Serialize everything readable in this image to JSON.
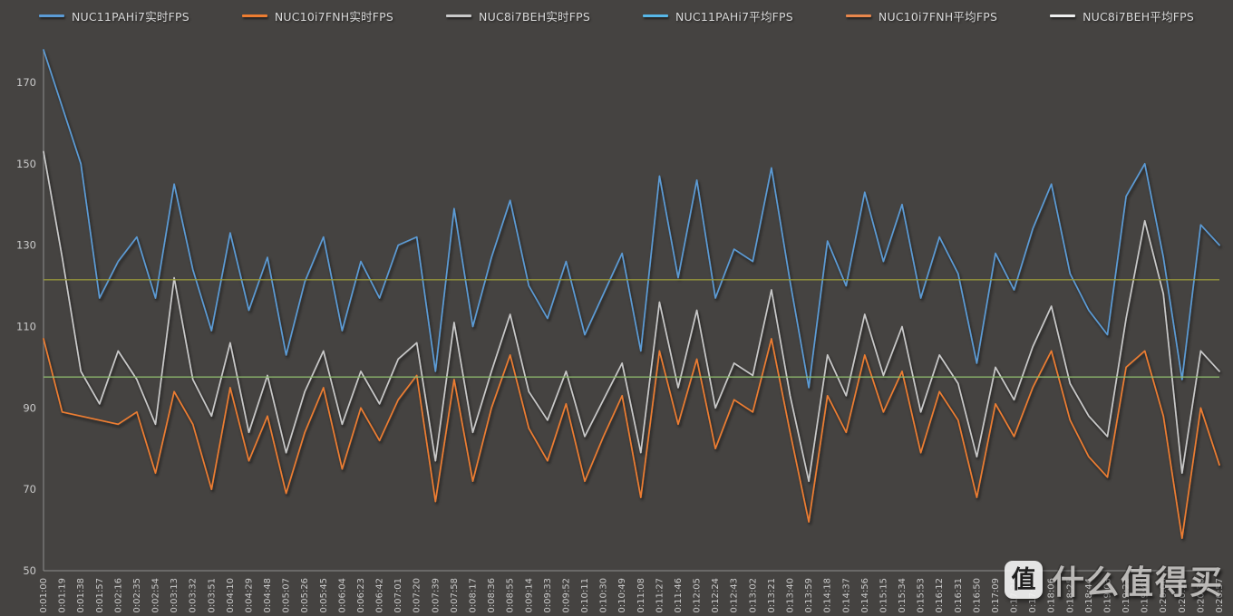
{
  "colors": {
    "background": "#4a4846",
    "axis": "#8f8f8f",
    "tick_text": "#c9c9c9",
    "legend_text": "#d9d9d9"
  },
  "watermark": {
    "logo_char": "值",
    "text": "什么值得买"
  },
  "chart_data": {
    "type": "line",
    "title": "",
    "xlabel": "",
    "ylabel": "",
    "grid": false,
    "legend_position": "top",
    "ylim": [
      50,
      178
    ],
    "yticks": [
      50,
      70,
      90,
      110,
      130,
      150,
      170
    ],
    "x": [
      "0:01:00",
      "0:01:19",
      "0:01:38",
      "0:01:57",
      "0:02:16",
      "0:02:35",
      "0:02:54",
      "0:03:13",
      "0:03:32",
      "0:03:51",
      "0:04:10",
      "0:04:29",
      "0:04:48",
      "0:05:07",
      "0:05:26",
      "0:05:45",
      "0:06:04",
      "0:06:23",
      "0:06:42",
      "0:07:01",
      "0:07:20",
      "0:07:39",
      "0:07:58",
      "0:08:17",
      "0:08:36",
      "0:08:55",
      "0:09:14",
      "0:09:33",
      "0:09:52",
      "0:10:11",
      "0:10:30",
      "0:10:49",
      "0:11:08",
      "0:11:27",
      "0:11:46",
      "0:12:05",
      "0:12:24",
      "0:12:43",
      "0:13:02",
      "0:13:21",
      "0:13:40",
      "0:13:59",
      "0:14:18",
      "0:14:37",
      "0:14:56",
      "0:15:15",
      "0:15:34",
      "0:15:53",
      "0:16:12",
      "0:16:31",
      "0:16:50",
      "0:17:09",
      "0:17:28",
      "0:17:47",
      "0:18:06",
      "0:18:25",
      "0:18:44",
      "0:19:03",
      "0:19:22",
      "0:19:41",
      "0:20:00",
      "0:20:19",
      "0:20:38",
      "0:20:57"
    ],
    "series": [
      {
        "name": "NUC11PAHi7实时FPS",
        "color": "#5B9BD5",
        "values": [
          178,
          164,
          150,
          117,
          126,
          132,
          117,
          145,
          124,
          109,
          133,
          114,
          127,
          103,
          121,
          132,
          109,
          126,
          117,
          130,
          132,
          99,
          139,
          110,
          127,
          141,
          120,
          112,
          126,
          108,
          118,
          128,
          104,
          147,
          122,
          146,
          117,
          129,
          126,
          149,
          121,
          95,
          131,
          120,
          143,
          126,
          140,
          117,
          132,
          123,
          101,
          128,
          119,
          134,
          145,
          123,
          114,
          108,
          142,
          150,
          127,
          97,
          135,
          130
        ]
      },
      {
        "name": "NUC10i7FNH实时FPS",
        "color": "#ED7D31",
        "values": [
          107,
          89,
          88,
          87,
          86,
          89,
          74,
          94,
          86,
          70,
          95,
          77,
          88,
          69,
          84,
          95,
          75,
          90,
          82,
          92,
          98,
          67,
          97,
          72,
          90,
          103,
          85,
          77,
          91,
          72,
          83,
          93,
          68,
          104,
          86,
          102,
          80,
          92,
          89,
          107,
          84,
          62,
          93,
          84,
          103,
          89,
          99,
          79,
          94,
          87,
          68,
          91,
          83,
          95,
          104,
          87,
          78,
          73,
          100,
          104,
          88,
          58,
          90,
          76
        ]
      },
      {
        "name": "NUC8i7BEH实时FPS",
        "color": "#C9C9C9",
        "values": [
          153,
          127,
          99,
          91,
          104,
          97,
          86,
          122,
          97,
          88,
          106,
          84,
          98,
          79,
          94,
          104,
          86,
          99,
          91,
          102,
          106,
          77,
          111,
          84,
          99,
          113,
          94,
          87,
          99,
          83,
          92,
          101,
          79,
          116,
          95,
          114,
          90,
          101,
          98,
          119,
          93,
          72,
          103,
          93,
          113,
          98,
          110,
          89,
          103,
          96,
          78,
          100,
          92,
          105,
          115,
          96,
          88,
          83,
          112,
          136,
          118,
          74,
          104,
          99
        ]
      }
    ],
    "average_lines": [
      {
        "name": "NUC11PAHi7平均FPS",
        "value": 123,
        "color": "#57B7E8"
      },
      {
        "name": "NUC10i7FNH平均FPS",
        "value": 88.5,
        "color": "#E8874C"
      },
      {
        "name": "NUC8i7BEH平均FPS",
        "value": 96.5,
        "color": "#EDEDED"
      }
    ],
    "extra_reference_lines": [
      {
        "value": 121.5,
        "color": "#9a9a3c"
      },
      {
        "value": 97.6,
        "color": "#8fbc6f"
      }
    ]
  }
}
